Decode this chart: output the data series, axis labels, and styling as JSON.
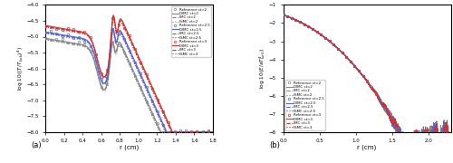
{
  "fig_width": 5.0,
  "fig_height": 1.8,
  "dpi": 100,
  "subplot_a": {
    "xlabel": "r (cm)",
    "xlim": [
      0,
      1.8
    ],
    "ylim": [
      -8,
      -4
    ],
    "yticks": [
      -8,
      -7.5,
      -7,
      -6.5,
      -6,
      -5.5,
      -5,
      -4.5,
      -4
    ],
    "xticks": [
      0,
      0.2,
      0.4,
      0.6,
      0.8,
      1.0,
      1.2,
      1.4,
      1.6,
      1.8
    ],
    "label": "(a)"
  },
  "subplot_b": {
    "xlabel": "r (cm)",
    "xlim": [
      0,
      2.3
    ],
    "ylim": [
      -8,
      -1
    ],
    "yticks": [
      -8,
      -7,
      -6,
      -5,
      -4,
      -3,
      -2,
      -1
    ],
    "xticks": [
      0,
      0.5,
      1.0,
      1.5,
      2.0
    ],
    "label": "(b)"
  },
  "colors": {
    "ct2": "#888888",
    "ct25": "#5566cc",
    "ct3": "#cc3333"
  },
  "legend_entries": [
    {
      "label": "Reference ct=2",
      "color": "#888888",
      "ls": "none",
      "marker": "o"
    },
    {
      "label": "DIMC ct=2",
      "color": "#888888",
      "ls": "-",
      "marker": "none"
    },
    {
      "label": "IMC ct=2",
      "color": "#888888",
      "ls": "--",
      "marker": "none"
    },
    {
      "label": "ISMC ct=2",
      "color": "#888888",
      "ls": ":",
      "marker": "none"
    },
    {
      "label": "Reference ct=2.5",
      "color": "#5566cc",
      "ls": "none",
      "marker": "o"
    },
    {
      "label": "DIMC ct=2.5",
      "color": "#5566cc",
      "ls": "-",
      "marker": "none"
    },
    {
      "label": "IMC ct=2.5",
      "color": "#5566cc",
      "ls": "--",
      "marker": "none"
    },
    {
      "label": "ISMC ct=2.5",
      "color": "#5566cc",
      "ls": ":",
      "marker": "none"
    },
    {
      "label": "Reference ct=3",
      "color": "#cc3333",
      "ls": "none",
      "marker": "o"
    },
    {
      "label": "DIMC ct=3",
      "color": "#cc3333",
      "ls": "-",
      "marker": "none"
    },
    {
      "label": "IMC ct=3",
      "color": "#cc3333",
      "ls": "--",
      "marker": "none"
    },
    {
      "label": "ISMC ct=3",
      "color": "#cc3333",
      "ls": ":",
      "marker": "none"
    }
  ]
}
